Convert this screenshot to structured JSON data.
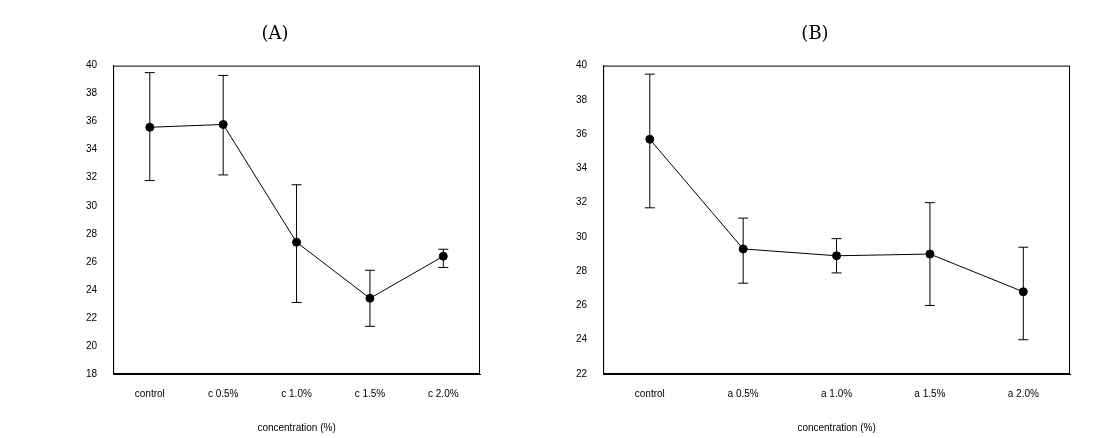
{
  "chart_data": [
    {
      "type": "line",
      "title": "(A)",
      "x_label": "concentration (%)",
      "categories": [
        "control",
        "c 0.5%",
        "c 1.0%",
        "c 1.5%",
        "c 2.0%"
      ],
      "values": [
        35.6,
        35.8,
        27.4,
        23.4,
        26.4
      ],
      "error_bars": {
        "lower": [
          31.8,
          32.2,
          23.1,
          21.4,
          25.6
        ],
        "upper": [
          39.5,
          39.3,
          31.5,
          25.4,
          26.9
        ]
      },
      "color": "#000000",
      "marker": "circle",
      "line_style": "solid",
      "grid": false,
      "ylim": [
        18,
        40
      ],
      "yticks": [
        18,
        20,
        22,
        24,
        26,
        28,
        30,
        32,
        34,
        36,
        38,
        40
      ]
    },
    {
      "type": "line",
      "title": "(B)",
      "x_label": "concentration (%)",
      "categories": [
        "control",
        "a 0.5%",
        "a 1.0%",
        "a 1.5%",
        "a 2.0%"
      ],
      "values": [
        35.7,
        29.3,
        28.9,
        29.0,
        26.8
      ],
      "error_bars": {
        "lower": [
          31.7,
          27.3,
          27.9,
          26.0,
          24.0
        ],
        "upper": [
          39.5,
          31.1,
          29.9,
          32.0,
          29.4
        ]
      },
      "color": "#000000",
      "marker": "circle",
      "line_style": "solid",
      "grid": false,
      "ylim": [
        22,
        40
      ],
      "yticks": [
        22,
        24,
        26,
        28,
        30,
        32,
        34,
        36,
        38,
        40
      ]
    }
  ]
}
